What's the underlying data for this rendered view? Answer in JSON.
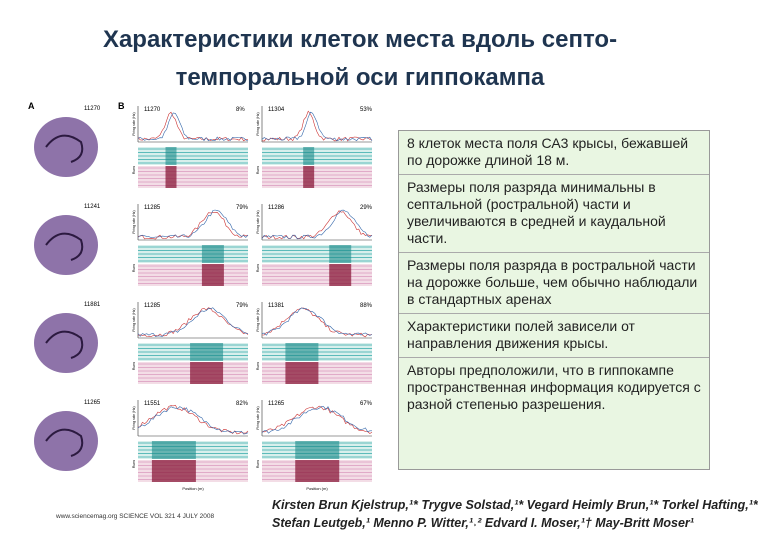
{
  "header": {
    "title_lines": [
      "Характеристики клеток места вдоль септо-",
      "темпоральной оси гиппокампа"
    ]
  },
  "figure": {
    "panel_labels": [
      "A",
      "B"
    ],
    "rows": [
      {
        "section": "11270",
        "cells": [
          {
            "id": "11270",
            "pct": "8%"
          },
          {
            "id": "11304",
            "pct": "53%"
          }
        ]
      },
      {
        "section": "11241",
        "cells": [
          {
            "id": "11285",
            "pct": "79%"
          },
          {
            "id": "11286",
            "pct": "29%"
          }
        ]
      },
      {
        "section": "11881",
        "cells": [
          {
            "id": "11285",
            "pct": "79%"
          },
          {
            "id": "11381",
            "pct": "88%"
          }
        ]
      },
      {
        "section": "11265",
        "cells": [
          {
            "id": "11551",
            "pct": "82%"
          },
          {
            "id": "11265",
            "pct": "67%"
          }
        ]
      }
    ],
    "y_label_rate": "Firing rate (Hz)",
    "y_label_runs": "Runs",
    "x_label": "Position (m)",
    "footer": "www.sciencemag.org   SCIENCE   VOL 321   4 JULY 2008"
  },
  "textbox": {
    "paragraphs": [
      "8 клеток места поля СА3 крысы, бежавшей по дорожке длиной 18 м.",
      "Размеры поля разряда минимальны в септальной (ростральной) части и увеличиваются в средней и каудальной части.",
      "Размеры поля разряда в ростральной части на дорожке больше, чем обычно наблюдали в стандартных аренах",
      "Характеристики полей зависели от направления движения крысы.",
      "Авторы предположили, что в гиппокампе пространственная информация кодируется с разной степенью разрешения."
    ]
  },
  "authors": [
    "Kirsten Brun Kjelstrup,¹* Trygve Solstad,¹* Vegard Heimly Brun,¹* Torkel Hafting,¹*",
    "Stefan Leutgeb,¹ Menno P. Witter,¹˒² Edvard I. Moser,¹† May-Britt Moser¹"
  ]
}
